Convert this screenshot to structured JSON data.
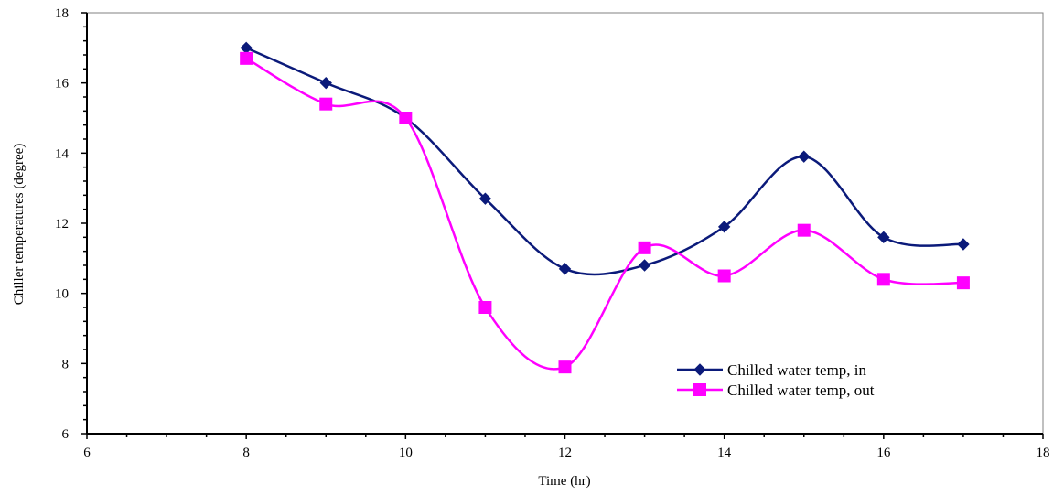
{
  "chart_data": {
    "type": "line",
    "title": "",
    "xlabel": "Time (hr)",
    "ylabel": "Chiller temperatures (degree)",
    "xlim": [
      6,
      18
    ],
    "ylim": [
      6,
      18
    ],
    "x_ticks": [
      6,
      8,
      10,
      12,
      14,
      16,
      18
    ],
    "y_ticks": [
      6,
      8,
      10,
      12,
      14,
      16,
      18
    ],
    "grid": false,
    "legend_position": "bottom-right",
    "smooth": true,
    "x": [
      8,
      9,
      10,
      11,
      12,
      13,
      14,
      15,
      16,
      17
    ],
    "series": [
      {
        "name": "Chilled water temp, in",
        "values": [
          17.0,
          16.0,
          15.0,
          12.7,
          10.7,
          10.8,
          11.9,
          13.9,
          11.6,
          11.4
        ],
        "color": "#0B1A7A",
        "marker": "diamond"
      },
      {
        "name": "Chilled water temp, out",
        "values": [
          16.7,
          15.4,
          15.0,
          9.6,
          7.9,
          11.3,
          10.5,
          11.8,
          10.4,
          10.3
        ],
        "color": "#FF00FF",
        "marker": "square"
      }
    ]
  }
}
